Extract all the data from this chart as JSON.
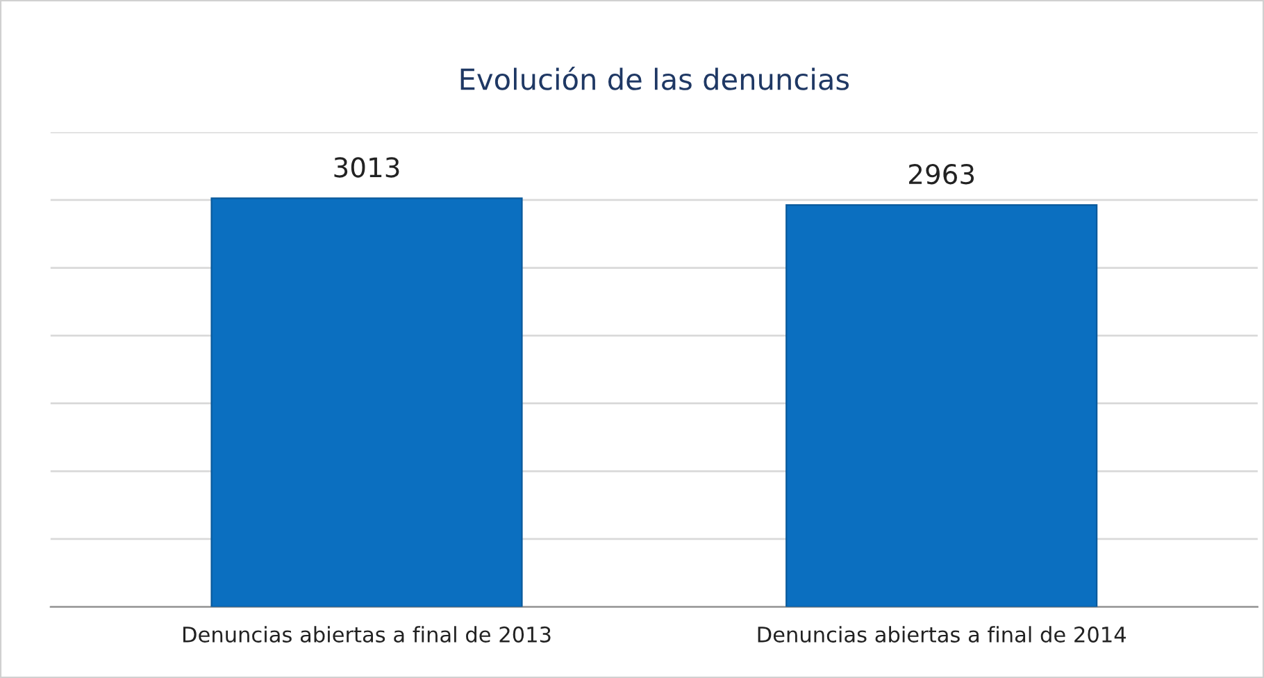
{
  "chart_data": {
    "type": "bar",
    "title": "Evolución de las denuncias",
    "categories": [
      "Denuncias abiertas a final de 2013",
      "Denuncias abiertas a final de 2014"
    ],
    "values": [
      3013,
      2963
    ],
    "color": "#0b6fc0",
    "data_labels": true,
    "ylim": [
      0,
      3500
    ],
    "yticks": [
      {
        "value": 0,
        "label": null
      },
      {
        "value": 500,
        "label": null
      },
      {
        "value": 1000,
        "label": null
      },
      {
        "value": 1500,
        "label": null
      },
      {
        "value": 2000,
        "label": null
      },
      {
        "value": 2500,
        "label": null
      },
      {
        "value": 3000,
        "label": null
      },
      {
        "value": 3500,
        "label": null
      }
    ],
    "grid": "y",
    "tick_labels": "x",
    "legend": false
  }
}
